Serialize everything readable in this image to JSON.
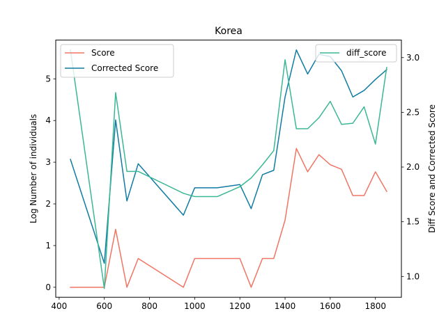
{
  "chart_data": {
    "type": "line",
    "title": "Korea",
    "xlabel": "",
    "ylabel": "Log Number of individuals",
    "y2label": "Diff Score and Corrected Score",
    "xlim": [
      385,
      1915
    ],
    "ylim": [
      -0.24,
      5.93
    ],
    "y2lim": [
      0.81,
      3.16
    ],
    "x_ticks": [
      400,
      600,
      800,
      1000,
      1200,
      1400,
      1600,
      1800
    ],
    "y_ticks": [
      0,
      1,
      2,
      3,
      4,
      5
    ],
    "y2_ticks": [
      1.0,
      1.5,
      2.0,
      2.5,
      3.0
    ],
    "grid": false,
    "legend_left": "upper-left",
    "legend_right": "upper-right",
    "series": [
      {
        "name": "Score",
        "axis": "left",
        "color": "#f07563",
        "x": [
          450,
          600,
          650,
          700,
          750,
          950,
          1000,
          1200,
          1250,
          1300,
          1350,
          1400,
          1450,
          1500,
          1550,
          1600,
          1650,
          1700,
          1750,
          1800,
          1850
        ],
        "values": [
          0.0,
          0.0,
          1.39,
          0.0,
          0.69,
          0.0,
          0.69,
          0.69,
          0.0,
          0.69,
          0.69,
          1.61,
          3.33,
          2.77,
          3.18,
          2.94,
          2.83,
          2.2,
          2.2,
          2.77,
          2.3
        ]
      },
      {
        "name": "Corrected Score",
        "axis": "right",
        "color": "#0f7ba2",
        "x": [
          450,
          600,
          650,
          700,
          750,
          950,
          1000,
          1100,
          1200,
          1250,
          1300,
          1350,
          1400,
          1450,
          1500,
          1550,
          1600,
          1650,
          1700,
          1750,
          1800,
          1850
        ],
        "values": [
          2.07,
          1.12,
          2.43,
          1.69,
          2.03,
          1.56,
          1.81,
          1.81,
          1.84,
          1.62,
          1.93,
          1.97,
          2.64,
          3.07,
          2.85,
          3.03,
          3.01,
          2.88,
          2.64,
          2.7,
          2.8,
          2.89
        ]
      },
      {
        "name": "diff_score",
        "axis": "right",
        "color": "#3ab795",
        "x": [
          450,
          600,
          650,
          700,
          750,
          950,
          1000,
          1100,
          1200,
          1250,
          1300,
          1350,
          1400,
          1450,
          1500,
          1550,
          1600,
          1650,
          1700,
          1750,
          1800,
          1850
        ],
        "values": [
          3.07,
          0.89,
          2.68,
          1.96,
          1.96,
          1.76,
          1.73,
          1.73,
          1.82,
          1.9,
          2.02,
          2.15,
          2.98,
          2.35,
          2.35,
          2.45,
          2.6,
          2.39,
          2.4,
          2.55,
          2.21,
          2.91
        ]
      }
    ]
  }
}
